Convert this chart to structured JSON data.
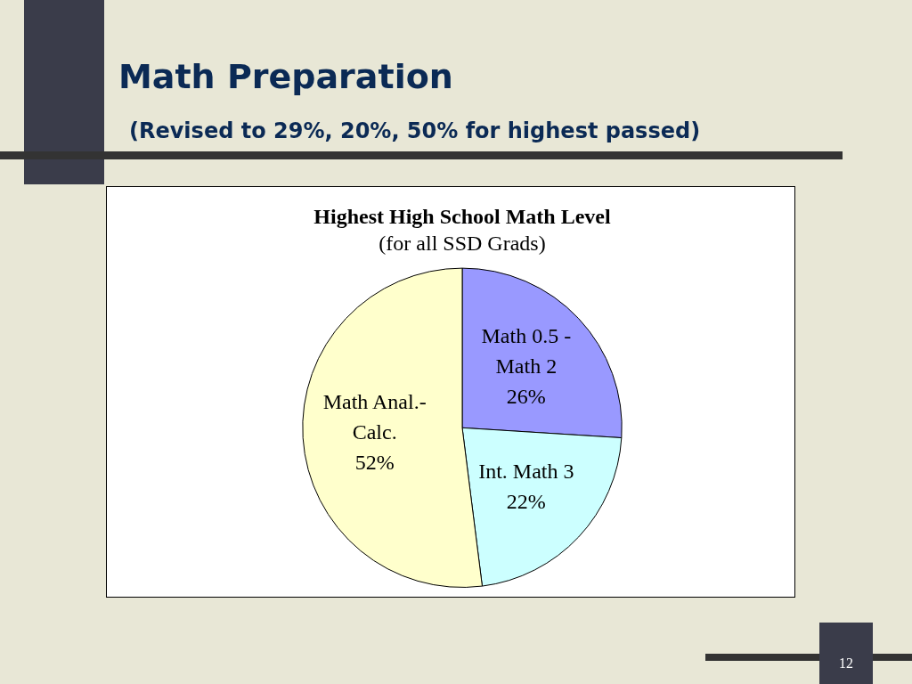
{
  "chart_data": {
    "type": "pie",
    "title": "Highest High School Math Level",
    "subtitle": "(for all SSD Grads)",
    "categories": [
      "Math 0.5 - Math 2",
      "Int. Math 3",
      "Math Anal.-Calc."
    ],
    "values": [
      26,
      22,
      52
    ],
    "colors": [
      "#9999ff",
      "#ccffff",
      "#ffffcc"
    ],
    "value_labels": [
      "26%",
      "22%",
      "52%"
    ],
    "annotations": [
      "Math Preparation",
      "(Revised to 29%, 20%, 50% for highest passed)",
      "12"
    ]
  }
}
